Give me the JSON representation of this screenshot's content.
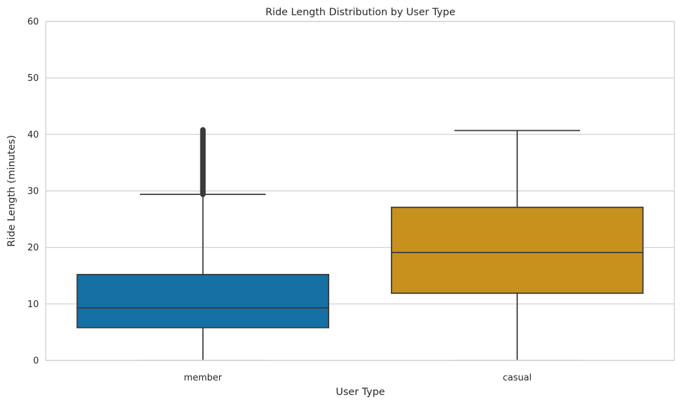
{
  "chart_data": {
    "type": "box",
    "title": "Ride Length Distribution by User Type",
    "xlabel": "User Type",
    "ylabel": "Ride Length (minutes)",
    "ylim": [
      0,
      60
    ],
    "yticks": [
      0,
      10,
      20,
      30,
      40,
      50,
      60
    ],
    "grid": true,
    "categories": [
      "member",
      "casual"
    ],
    "boxes": [
      {
        "category": "member",
        "color": "#1570a4",
        "whisker_low": 0,
        "q1": 5.8,
        "median": 9.3,
        "q3": 15.2,
        "whisker_high": 29.4,
        "outliers_range": [
          29.4,
          40.8
        ]
      },
      {
        "category": "casual",
        "color": "#c8911e",
        "whisker_low": 0,
        "q1": 11.9,
        "median": 19.1,
        "q3": 27.1,
        "whisker_high": 40.7,
        "outliers_range": null
      }
    ]
  }
}
